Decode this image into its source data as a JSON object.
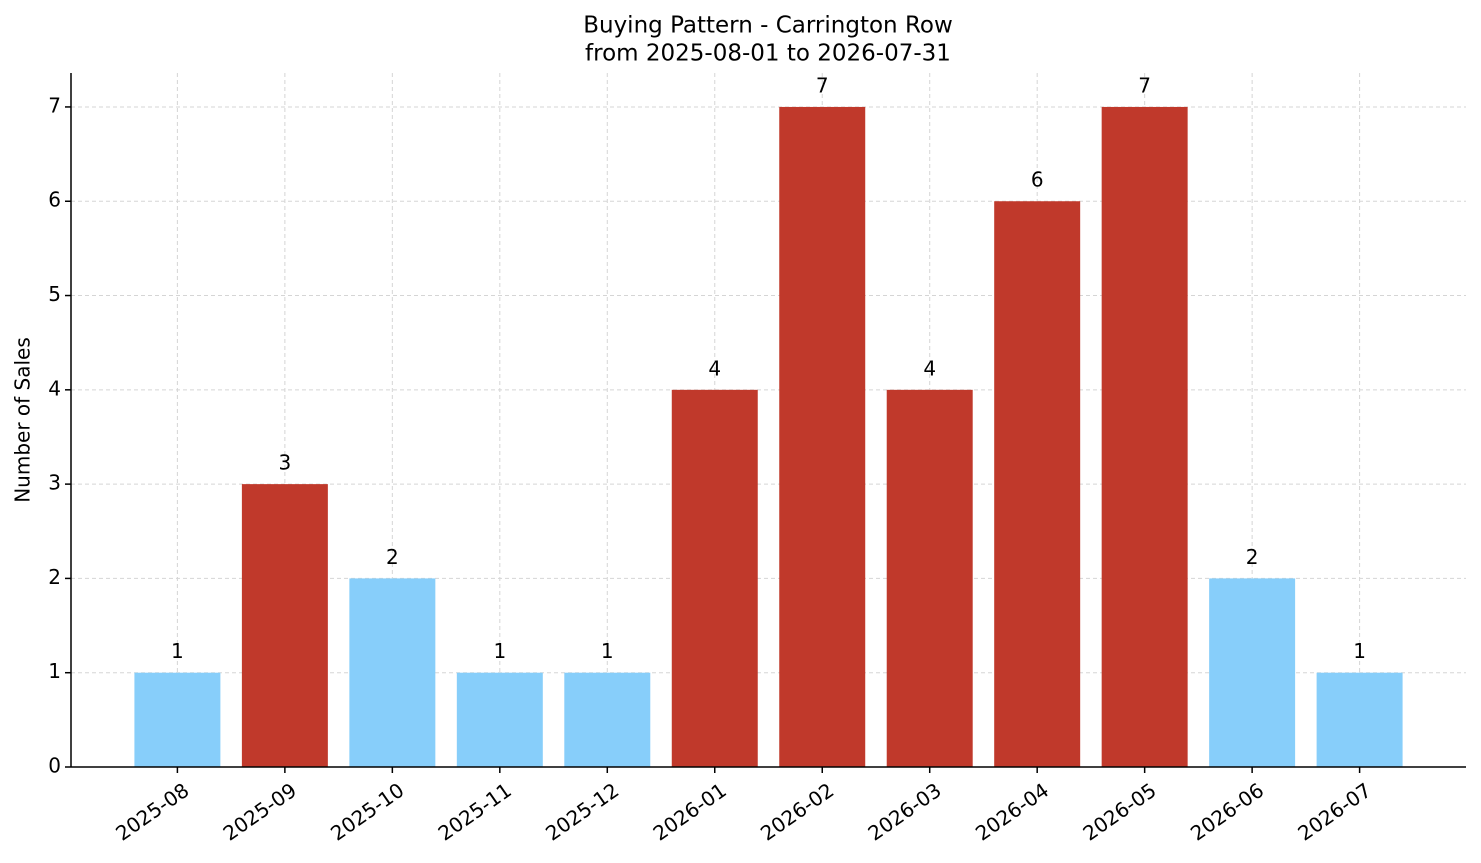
{
  "chart_data": {
    "type": "bar",
    "title": "Buying Pattern - Carrington Row",
    "subtitle": "from 2025-08-01 to 2026-07-31",
    "y_label": "Number of Sales",
    "categories": [
      "2025-08",
      "2025-09",
      "2025-10",
      "2025-11",
      "2025-12",
      "2026-01",
      "2026-02",
      "2026-03",
      "2026-04",
      "2026-05",
      "2026-06",
      "2026-07"
    ],
    "values": [
      1,
      3,
      2,
      1,
      1,
      4,
      7,
      4,
      6,
      7,
      2,
      1
    ],
    "colors": [
      "#87cefa",
      "#c0392b",
      "#87cefa",
      "#87cefa",
      "#87cefa",
      "#c0392b",
      "#c0392b",
      "#c0392b",
      "#c0392b",
      "#c0392b",
      "#87cefa",
      "#87cefa"
    ],
    "ylim": [
      0,
      7.36
    ],
    "yticks": [
      0,
      1,
      2,
      3,
      4,
      5,
      6,
      7
    ],
    "grid": true
  }
}
